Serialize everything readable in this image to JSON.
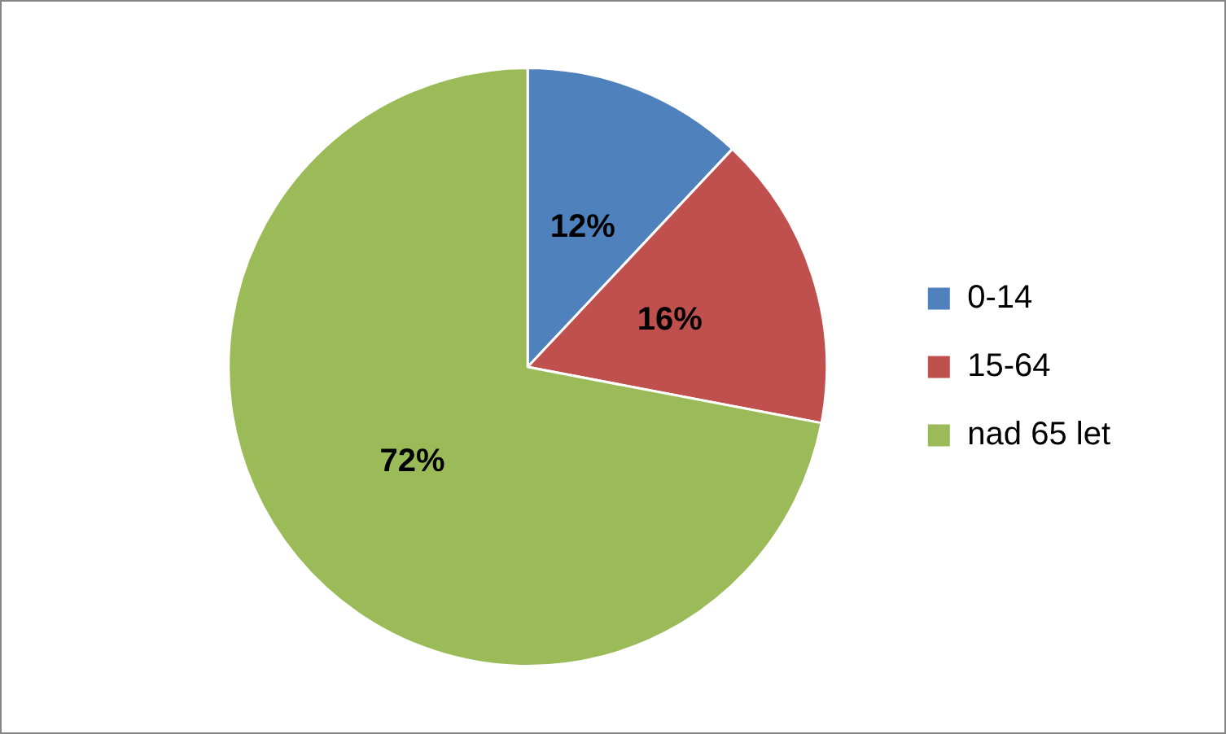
{
  "chart_data": {
    "type": "pie",
    "categories": [
      "0-14",
      "15-64",
      "nad 65 let"
    ],
    "values": [
      12,
      16,
      72
    ],
    "colors": [
      "#4f81bd",
      "#c0504d",
      "#9bbb59"
    ],
    "value_labels": [
      "12%",
      "16%",
      "72%"
    ],
    "legend": "right"
  }
}
